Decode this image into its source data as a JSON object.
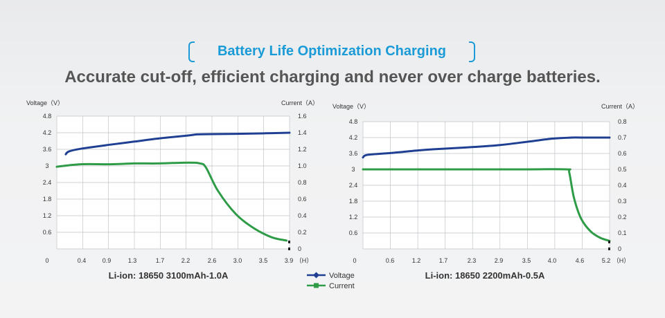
{
  "header": {
    "badge": "Battery Life Optimization Charging",
    "subtitle": "Accurate cut-off, efficient charging and never over charge batteries."
  },
  "legend": [
    {
      "name": "Voltage",
      "color": "#1f3f93",
      "marker": "diamond"
    },
    {
      "name": "Current",
      "color": "#2e9b47",
      "marker": "square"
    }
  ],
  "chart_data": [
    {
      "type": "line",
      "caption": "Li-ion: 18650 3100mAh-1.0A",
      "ylabel": "Voltage（V）",
      "y2label": "Current（A）",
      "xunit": "（H）",
      "x_ticks": [
        "0",
        "0.4",
        "0.9",
        "1.3",
        "1.7",
        "2.2",
        "2.6",
        "3.0",
        "3.5",
        "3.9"
      ],
      "y_ticks": [
        "4.8",
        "4.2",
        "3.6",
        "3",
        "2.4",
        "1.8",
        "1.2",
        "0.6"
      ],
      "y2_ticks": [
        "1.6",
        "1.4",
        "1.2",
        "1.0",
        "0.8",
        "0.6",
        "0.4",
        "0.2",
        "0"
      ],
      "xlim": [
        0,
        3.9
      ],
      "ylim": [
        0,
        4.8
      ],
      "y2lim": [
        0,
        1.6
      ],
      "grid": true,
      "series": [
        {
          "name": "Voltage",
          "axis": "left",
          "x": [
            0.15,
            0.2,
            0.4,
            0.9,
            1.3,
            1.7,
            2.2,
            2.35,
            2.6,
            3.0,
            3.5,
            3.9
          ],
          "y": [
            3.42,
            3.52,
            3.62,
            3.77,
            3.88,
            3.99,
            4.1,
            4.14,
            4.15,
            4.16,
            4.18,
            4.2
          ]
        },
        {
          "name": "Current",
          "axis": "right",
          "x": [
            0.0,
            0.4,
            0.9,
            1.3,
            1.7,
            2.2,
            2.4,
            2.5,
            2.7,
            3.0,
            3.3,
            3.6,
            3.85
          ],
          "y": [
            0.99,
            1.02,
            1.02,
            1.03,
            1.03,
            1.04,
            1.03,
            0.98,
            0.7,
            0.42,
            0.25,
            0.14,
            0.1
          ]
        }
      ]
    },
    {
      "type": "line",
      "caption": "Li-ion: 18650 2200mAh-0.5A",
      "ylabel": "Voltage（V）",
      "y2label": "Current（A）",
      "xunit": "（H）",
      "x_ticks": [
        "0",
        "0.6",
        "1.2",
        "1.7",
        "2.3",
        "2.9",
        "3.5",
        "4.0",
        "4.6",
        "5.2"
      ],
      "y_ticks": [
        "4.8",
        "4.2",
        "3.6",
        "3",
        "2.4",
        "1.8",
        "1.2",
        "0.6"
      ],
      "y2_ticks": [
        "0.8",
        "0.7",
        "0.6",
        "0.5",
        "0.4",
        "0.3",
        "0.2",
        "0.1",
        "0"
      ],
      "xlim": [
        0,
        5.2
      ],
      "ylim": [
        0,
        4.8
      ],
      "y2lim": [
        0,
        0.8
      ],
      "grid": true,
      "series": [
        {
          "name": "Voltage",
          "axis": "left",
          "x": [
            0.0,
            0.1,
            0.6,
            1.2,
            1.7,
            2.3,
            2.9,
            3.5,
            4.0,
            4.4,
            4.6,
            5.2
          ],
          "y": [
            3.45,
            3.55,
            3.62,
            3.72,
            3.78,
            3.84,
            3.92,
            4.05,
            4.16,
            4.2,
            4.2,
            4.2
          ]
        },
        {
          "name": "Current",
          "axis": "right",
          "x": [
            0.0,
            0.6,
            1.2,
            2.3,
            3.5,
            4.3,
            4.35,
            4.45,
            4.6,
            4.8,
            5.0,
            5.2
          ],
          "y": [
            0.5,
            0.5,
            0.5,
            0.5,
            0.5,
            0.5,
            0.48,
            0.32,
            0.19,
            0.11,
            0.07,
            0.05
          ]
        }
      ]
    }
  ]
}
